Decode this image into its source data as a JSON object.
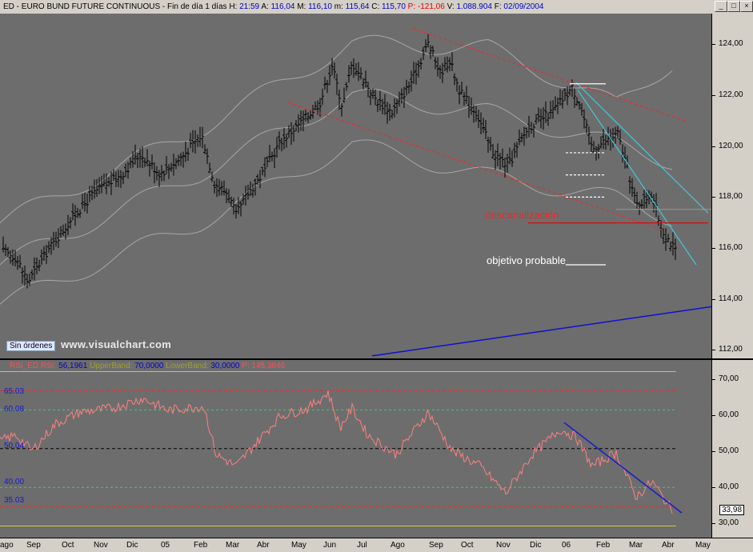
{
  "window": {
    "title_symbol": "ED",
    "title_name": "EURO BUND FUTURE CONTINUOUS",
    "title_period": "Fin de día 1 días",
    "h_label": "H:",
    "h_value": "21:59",
    "a_label": "A:",
    "a_value": "116,04",
    "m_label": "M:",
    "m_value": "116,10",
    "lo_label": "m:",
    "lo_value": "115,64",
    "c_label": "C:",
    "c_value": "115,70",
    "p_label": "P:",
    "p_value": "-121,06",
    "v_label": "V:",
    "v_value": "1.088.904",
    "f_label": "F:",
    "f_value": "02/09/2004",
    "btn_min": "_",
    "btn_max": "□",
    "btn_close": "×"
  },
  "price_chart": {
    "sin_ordenes": "Sin órdenes",
    "watermark": "www.visualchart.com",
    "annotation_descanalizacion": "descanalización",
    "annotation_objetivo": "objetivo probable",
    "axis_labels": [
      "124,00",
      "122,00",
      "120,00",
      "118,00",
      "116,00",
      "114,00",
      "112,00"
    ],
    "colors": {
      "background": "#6d6d6d",
      "bars": "#000000",
      "bands": "#a0a0a0",
      "channel": "#e03030",
      "trend_cyan": "#40c8d8",
      "trend_blue": "#1010d0"
    }
  },
  "rsi_chart": {
    "title_name": "RSI_ED",
    "rsi_label": "RSI:",
    "rsi_value": "56,1961",
    "upper_label": "UpperBand:",
    "upper_value": "70,0000",
    "lower_label": "LowerBand:",
    "lower_value": "30,0000",
    "p_label": "P:",
    "p_value": "145,3846",
    "levels": [
      "65.03",
      "60.08",
      "50.04",
      "40.00",
      "35.03"
    ],
    "axis_labels": [
      "70,00",
      "60,00",
      "50,00",
      "40,00",
      "30,00"
    ],
    "current_value": "33,98"
  },
  "date_axis": [
    "ago",
    "Sep",
    "Oct",
    "Nov",
    "Dic",
    "05",
    "Feb",
    "Mar",
    "Abr",
    "May",
    "Jun",
    "Jul",
    "Ago",
    "Sep",
    "Oct",
    "Nov",
    "Dic",
    "06",
    "Feb",
    "Mar",
    "Abr",
    "May"
  ],
  "chart_data": [
    {
      "type": "line",
      "subtype": "ohlc",
      "title": "EURO BUND FUTURE CONTINUOUS",
      "x_range": [
        "2004-08",
        "2006-05"
      ],
      "ylim": [
        111.5,
        125.5
      ],
      "grid": false,
      "price_waypoints": [
        {
          "t": 0,
          "p": 115.9
        },
        {
          "t": 20,
          "p": 115.6
        },
        {
          "t": 35,
          "p": 114.6
        },
        {
          "t": 60,
          "p": 115.9
        },
        {
          "t": 90,
          "p": 117.2
        },
        {
          "t": 120,
          "p": 118.3
        },
        {
          "t": 150,
          "p": 118.9
        },
        {
          "t": 175,
          "p": 119.8
        },
        {
          "t": 200,
          "p": 119.0
        },
        {
          "t": 225,
          "p": 119.6
        },
        {
          "t": 252,
          "p": 120.6
        },
        {
          "t": 268,
          "p": 118.6
        },
        {
          "t": 285,
          "p": 118.2
        },
        {
          "t": 295,
          "p": 117.3
        },
        {
          "t": 310,
          "p": 118.2
        },
        {
          "t": 330,
          "p": 119.1
        },
        {
          "t": 350,
          "p": 120.3
        },
        {
          "t": 380,
          "p": 121.2
        },
        {
          "t": 400,
          "p": 121.9
        },
        {
          "t": 415,
          "p": 123.4
        },
        {
          "t": 428,
          "p": 121.7
        },
        {
          "t": 440,
          "p": 123.5
        },
        {
          "t": 455,
          "p": 122.8
        },
        {
          "t": 470,
          "p": 122.0
        },
        {
          "t": 490,
          "p": 121.5
        },
        {
          "t": 515,
          "p": 122.8
        },
        {
          "t": 535,
          "p": 124.3
        },
        {
          "t": 550,
          "p": 123.1
        },
        {
          "t": 562,
          "p": 123.6
        },
        {
          "t": 575,
          "p": 122.3
        },
        {
          "t": 595,
          "p": 121.5
        },
        {
          "t": 615,
          "p": 119.9
        },
        {
          "t": 635,
          "p": 119.3
        },
        {
          "t": 660,
          "p": 120.9
        },
        {
          "t": 690,
          "p": 121.5
        },
        {
          "t": 715,
          "p": 122.5
        },
        {
          "t": 725,
          "p": 121.8
        },
        {
          "t": 740,
          "p": 120.0
        },
        {
          "t": 755,
          "p": 120.3
        },
        {
          "t": 772,
          "p": 120.6
        },
        {
          "t": 785,
          "p": 119.1
        },
        {
          "t": 795,
          "p": 117.7
        },
        {
          "t": 815,
          "p": 118.2
        },
        {
          "t": 825,
          "p": 116.9
        },
        {
          "t": 845,
          "p": 115.8
        }
      ],
      "bollinger_bands": {
        "upper": [
          {
            "t": 0,
            "p": 117.0
          },
          {
            "t": 250,
            "p": 120.8
          },
          {
            "t": 440,
            "p": 124.3
          },
          {
            "t": 610,
            "p": 124.1
          },
          {
            "t": 770,
            "p": 121.8
          },
          {
            "t": 840,
            "p": 123.5
          }
        ],
        "middle": [
          {
            "t": 0,
            "p": 115.3
          },
          {
            "t": 250,
            "p": 119.0
          },
          {
            "t": 440,
            "p": 122.2
          },
          {
            "t": 610,
            "p": 121.5
          },
          {
            "t": 770,
            "p": 120.2
          },
          {
            "t": 840,
            "p": 119.5
          }
        ],
        "lower": [
          {
            "t": 0,
            "p": 113.7
          },
          {
            "t": 250,
            "p": 117.0
          },
          {
            "t": 440,
            "p": 120.2
          },
          {
            "t": 610,
            "p": 118.9
          },
          {
            "t": 770,
            "p": 118.0
          },
          {
            "t": 840,
            "p": 117.2
          }
        ]
      },
      "channel_lines": [
        {
          "from": {
            "t": 515,
            "p": 124.9
          },
          "to": {
            "t": 860,
            "p": 121.1
          }
        },
        {
          "from": {
            "t": 360,
            "p": 121.9
          },
          "to": {
            "t": 830,
            "p": 116.7
          }
        }
      ],
      "trend_lines_cyan": [
        {
          "from": {
            "t": 720,
            "p": 122.7
          },
          "to": {
            "t": 885,
            "p": 117.4
          }
        },
        {
          "from": {
            "t": 722,
            "p": 122.4
          },
          "to": {
            "t": 870,
            "p": 115.3
          }
        }
      ],
      "trend_line_blue": {
        "from": {
          "t": 465,
          "p": 111.6
        },
        "to": {
          "t": 889,
          "p": 113.6
        }
      },
      "horizontal_lines": [
        {
          "label": "descanalización",
          "p": 117.0,
          "from_t": 660,
          "to_t": 885,
          "color": "#e00000"
        },
        {
          "p": 122.65,
          "from_t": 712,
          "to_t": 757,
          "color": "#ffffff"
        },
        {
          "p": 119.85,
          "from_t": 707,
          "to_t": 757,
          "color": "#ffffff",
          "dashed": true
        },
        {
          "p": 118.95,
          "from_t": 707,
          "to_t": 757,
          "color": "#ffffff",
          "dashed": true
        },
        {
          "p": 118.05,
          "from_t": 707,
          "to_t": 757,
          "color": "#ffffff",
          "dashed": true
        },
        {
          "label": "objetivo probable",
          "p": 115.3,
          "from_t": 707,
          "to_t": 757,
          "color": "#ffffff"
        }
      ],
      "last_close": 115.7
    },
    {
      "type": "line",
      "title": "RSI_ED",
      "ylim": [
        27,
        73
      ],
      "levels": [
        70,
        65.03,
        60.08,
        50.04,
        40.0,
        35.03,
        30
      ],
      "rsi_waypoints": [
        {
          "t": 0,
          "v": 52.0
        },
        {
          "t": 20,
          "v": 53.5
        },
        {
          "t": 40,
          "v": 49.5
        },
        {
          "t": 70,
          "v": 56.5
        },
        {
          "t": 100,
          "v": 59.5
        },
        {
          "t": 140,
          "v": 60.5
        },
        {
          "t": 178,
          "v": 63.0
        },
        {
          "t": 210,
          "v": 60.0
        },
        {
          "t": 255,
          "v": 61.0
        },
        {
          "t": 270,
          "v": 48.5
        },
        {
          "t": 295,
          "v": 45.5
        },
        {
          "t": 320,
          "v": 51.5
        },
        {
          "t": 350,
          "v": 58.5
        },
        {
          "t": 385,
          "v": 60.5
        },
        {
          "t": 410,
          "v": 64.5
        },
        {
          "t": 425,
          "v": 55.5
        },
        {
          "t": 440,
          "v": 60.5
        },
        {
          "t": 460,
          "v": 53.5
        },
        {
          "t": 495,
          "v": 48.5
        },
        {
          "t": 535,
          "v": 59.5
        },
        {
          "t": 565,
          "v": 49.5
        },
        {
          "t": 600,
          "v": 45.5
        },
        {
          "t": 632,
          "v": 38.5
        },
        {
          "t": 665,
          "v": 48.5
        },
        {
          "t": 700,
          "v": 55.0
        },
        {
          "t": 720,
          "v": 53.0
        },
        {
          "t": 740,
          "v": 45.5
        },
        {
          "t": 770,
          "v": 49.0
        },
        {
          "t": 795,
          "v": 37.5
        },
        {
          "t": 815,
          "v": 41.5
        },
        {
          "t": 840,
          "v": 33.98
        }
      ],
      "trend_line_blue": {
        "from": {
          "t": 705,
          "v": 56.8
        },
        "to": {
          "t": 852,
          "v": 33.4
        }
      },
      "current_value": 33.98
    }
  ]
}
